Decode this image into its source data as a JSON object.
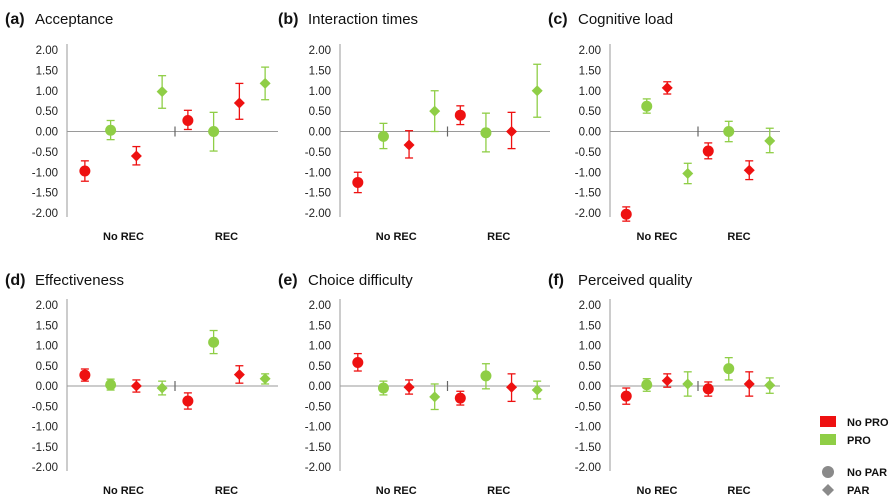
{
  "colors": {
    "no_pro": "#ee1111",
    "pro": "#8fce46",
    "gray": "#8a8a8a"
  },
  "legend": {
    "items": [
      {
        "label": "No PRO",
        "shape": "rect",
        "color": "#ee1111"
      },
      {
        "label": "PRO",
        "shape": "rect",
        "color": "#8fce46"
      },
      {
        "label": "No PAR",
        "shape": "circle",
        "color": "#8a8a8a"
      },
      {
        "label": "PAR",
        "shape": "diamond",
        "color": "#8a8a8a"
      }
    ]
  },
  "chart_data": [
    {
      "type": "scatter",
      "tag": "(a)",
      "title": "Acceptance",
      "ylim": [
        -2,
        2
      ],
      "yticks": [
        "2.00",
        "1.50",
        "1.00",
        "0.50",
        "0.00",
        "-0.50",
        "-1.00",
        "-1.50",
        "-2.00"
      ],
      "groups": [
        "No REC",
        "REC"
      ],
      "points": [
        {
          "group": "No REC",
          "pro": "No PRO",
          "par": "No PAR",
          "y": -0.97,
          "lo": -1.22,
          "hi": -0.72
        },
        {
          "group": "No REC",
          "pro": "PRO",
          "par": "No PAR",
          "y": 0.03,
          "lo": -0.2,
          "hi": 0.27
        },
        {
          "group": "No REC",
          "pro": "No PRO",
          "par": "PAR",
          "y": -0.6,
          "lo": -0.82,
          "hi": -0.37
        },
        {
          "group": "No REC",
          "pro": "PRO",
          "par": "PAR",
          "y": 0.98,
          "lo": 0.57,
          "hi": 1.37
        },
        {
          "group": "REC",
          "pro": "No PRO",
          "par": "No PAR",
          "y": 0.27,
          "lo": 0.05,
          "hi": 0.52
        },
        {
          "group": "REC",
          "pro": "PRO",
          "par": "No PAR",
          "y": 0.0,
          "lo": -0.48,
          "hi": 0.47
        },
        {
          "group": "REC",
          "pro": "No PRO",
          "par": "PAR",
          "y": 0.7,
          "lo": 0.3,
          "hi": 1.18
        },
        {
          "group": "REC",
          "pro": "PRO",
          "par": "PAR",
          "y": 1.18,
          "lo": 0.78,
          "hi": 1.58
        }
      ]
    },
    {
      "type": "scatter",
      "tag": "(b)",
      "title": "Interaction times",
      "ylim": [
        -2,
        2
      ],
      "yticks": [
        "2.00",
        "1.50",
        "1.00",
        "0.50",
        "0.00",
        "-0.50",
        "-1.00",
        "-1.50",
        "-2.00"
      ],
      "groups": [
        "No REC",
        "REC"
      ],
      "points": [
        {
          "group": "No REC",
          "pro": "No PRO",
          "par": "No PAR",
          "y": -1.25,
          "lo": -1.5,
          "hi": -1.0
        },
        {
          "group": "No REC",
          "pro": "PRO",
          "par": "No PAR",
          "y": -0.12,
          "lo": -0.42,
          "hi": 0.2
        },
        {
          "group": "No REC",
          "pro": "No PRO",
          "par": "PAR",
          "y": -0.33,
          "lo": -0.65,
          "hi": 0.02
        },
        {
          "group": "No REC",
          "pro": "PRO",
          "par": "PAR",
          "y": 0.5,
          "lo": 0.0,
          "hi": 1.0
        },
        {
          "group": "REC",
          "pro": "No PRO",
          "par": "No PAR",
          "y": 0.4,
          "lo": 0.17,
          "hi": 0.63
        },
        {
          "group": "REC",
          "pro": "PRO",
          "par": "No PAR",
          "y": -0.03,
          "lo": -0.5,
          "hi": 0.45
        },
        {
          "group": "REC",
          "pro": "No PRO",
          "par": "PAR",
          "y": 0.0,
          "lo": -0.42,
          "hi": 0.47
        },
        {
          "group": "REC",
          "pro": "PRO",
          "par": "PAR",
          "y": 1.0,
          "lo": 0.35,
          "hi": 1.65
        }
      ]
    },
    {
      "type": "scatter",
      "tag": "(c)",
      "title": "Cognitive load",
      "ylim": [
        -2,
        2
      ],
      "yticks": [
        "2.00",
        "1.50",
        "1.00",
        "0.50",
        "0.00",
        "-0.50",
        "-1.00",
        "-1.50",
        "-2.00"
      ],
      "groups": [
        "No REC",
        "REC"
      ],
      "points": [
        {
          "group": "No REC",
          "pro": "No PRO",
          "par": "No PAR",
          "y": -2.03,
          "lo": -2.2,
          "hi": -1.85
        },
        {
          "group": "No REC",
          "pro": "PRO",
          "par": "No PAR",
          "y": 0.62,
          "lo": 0.45,
          "hi": 0.8
        },
        {
          "group": "No REC",
          "pro": "No PRO",
          "par": "PAR",
          "y": 1.07,
          "lo": 0.92,
          "hi": 1.22
        },
        {
          "group": "No REC",
          "pro": "PRO",
          "par": "PAR",
          "y": -1.03,
          "lo": -1.28,
          "hi": -0.78
        },
        {
          "group": "REC",
          "pro": "No PRO",
          "par": "No PAR",
          "y": -0.48,
          "lo": -0.67,
          "hi": -0.28
        },
        {
          "group": "REC",
          "pro": "PRO",
          "par": "No PAR",
          "y": 0.0,
          "lo": -0.25,
          "hi": 0.25
        },
        {
          "group": "REC",
          "pro": "No PRO",
          "par": "PAR",
          "y": -0.95,
          "lo": -1.18,
          "hi": -0.72
        },
        {
          "group": "REC",
          "pro": "PRO",
          "par": "PAR",
          "y": -0.23,
          "lo": -0.52,
          "hi": 0.08
        }
      ]
    },
    {
      "type": "scatter",
      "tag": "(d)",
      "title": "Effectiveness",
      "ylim": [
        -2,
        2
      ],
      "yticks": [
        "2.00",
        "1.50",
        "1.00",
        "0.50",
        "0.00",
        "-0.50",
        "-1.00",
        "-1.50",
        "-2.00"
      ],
      "groups": [
        "No REC",
        "REC"
      ],
      "points": [
        {
          "group": "No REC",
          "pro": "No PRO",
          "par": "No PAR",
          "y": 0.27,
          "lo": 0.12,
          "hi": 0.42
        },
        {
          "group": "No REC",
          "pro": "PRO",
          "par": "No PAR",
          "y": 0.03,
          "lo": -0.1,
          "hi": 0.17
        },
        {
          "group": "No REC",
          "pro": "No PRO",
          "par": "PAR",
          "y": 0.0,
          "lo": -0.15,
          "hi": 0.15
        },
        {
          "group": "No REC",
          "pro": "PRO",
          "par": "PAR",
          "y": -0.05,
          "lo": -0.22,
          "hi": 0.12
        },
        {
          "group": "REC",
          "pro": "No PRO",
          "par": "No PAR",
          "y": -0.37,
          "lo": -0.57,
          "hi": -0.17
        },
        {
          "group": "REC",
          "pro": "PRO",
          "par": "No PAR",
          "y": 1.08,
          "lo": 0.8,
          "hi": 1.37
        },
        {
          "group": "REC",
          "pro": "No PRO",
          "par": "PAR",
          "y": 0.28,
          "lo": 0.07,
          "hi": 0.5
        },
        {
          "group": "REC",
          "pro": "PRO",
          "par": "PAR",
          "y": 0.18,
          "lo": 0.05,
          "hi": 0.3
        }
      ]
    },
    {
      "type": "scatter",
      "tag": "(e)",
      "title": "Choice difficulty",
      "ylim": [
        -2,
        2
      ],
      "yticks": [
        "2.00",
        "1.50",
        "1.00",
        "0.50",
        "0.00",
        "-0.50",
        "-1.00",
        "-1.50",
        "-2.00"
      ],
      "groups": [
        "No REC",
        "REC"
      ],
      "points": [
        {
          "group": "No REC",
          "pro": "No PRO",
          "par": "No PAR",
          "y": 0.58,
          "lo": 0.37,
          "hi": 0.8
        },
        {
          "group": "No REC",
          "pro": "PRO",
          "par": "No PAR",
          "y": -0.05,
          "lo": -0.22,
          "hi": 0.12
        },
        {
          "group": "No REC",
          "pro": "No PRO",
          "par": "PAR",
          "y": -0.03,
          "lo": -0.2,
          "hi": 0.15
        },
        {
          "group": "No REC",
          "pro": "PRO",
          "par": "PAR",
          "y": -0.27,
          "lo": -0.58,
          "hi": 0.05
        },
        {
          "group": "REC",
          "pro": "No PRO",
          "par": "No PAR",
          "y": -0.3,
          "lo": -0.47,
          "hi": -0.13
        },
        {
          "group": "REC",
          "pro": "PRO",
          "par": "No PAR",
          "y": 0.25,
          "lo": -0.07,
          "hi": 0.55
        },
        {
          "group": "REC",
          "pro": "No PRO",
          "par": "PAR",
          "y": -0.03,
          "lo": -0.38,
          "hi": 0.3
        },
        {
          "group": "REC",
          "pro": "PRO",
          "par": "PAR",
          "y": -0.1,
          "lo": -0.32,
          "hi": 0.12
        }
      ]
    },
    {
      "type": "scatter",
      "tag": "(f)",
      "title": "Perceived quality",
      "ylim": [
        -2,
        2
      ],
      "yticks": [
        "2.00",
        "1.50",
        "1.00",
        "0.50",
        "0.00",
        "-0.50",
        "-1.00",
        "-1.50",
        "-2.00"
      ],
      "groups": [
        "No REC",
        "REC"
      ],
      "points": [
        {
          "group": "No REC",
          "pro": "No PRO",
          "par": "No PAR",
          "y": -0.25,
          "lo": -0.45,
          "hi": -0.05
        },
        {
          "group": "No REC",
          "pro": "PRO",
          "par": "No PAR",
          "y": 0.03,
          "lo": -0.13,
          "hi": 0.18
        },
        {
          "group": "No REC",
          "pro": "No PRO",
          "par": "PAR",
          "y": 0.13,
          "lo": -0.03,
          "hi": 0.3
        },
        {
          "group": "No REC",
          "pro": "PRO",
          "par": "PAR",
          "y": 0.05,
          "lo": -0.25,
          "hi": 0.35
        },
        {
          "group": "REC",
          "pro": "No PRO",
          "par": "No PAR",
          "y": -0.07,
          "lo": -0.25,
          "hi": 0.1
        },
        {
          "group": "REC",
          "pro": "PRO",
          "par": "No PAR",
          "y": 0.43,
          "lo": 0.15,
          "hi": 0.7
        },
        {
          "group": "REC",
          "pro": "No PRO",
          "par": "PAR",
          "y": 0.05,
          "lo": -0.25,
          "hi": 0.35
        },
        {
          "group": "REC",
          "pro": "PRO",
          "par": "PAR",
          "y": 0.02,
          "lo": -0.18,
          "hi": 0.2
        }
      ]
    }
  ]
}
